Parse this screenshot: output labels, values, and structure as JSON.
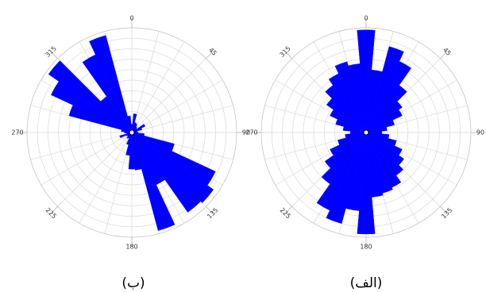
{
  "figure": {
    "panels": [
      {
        "id": "b",
        "caption": "(ب)"
      },
      {
        "id": "alef",
        "caption": "(الف)"
      }
    ]
  },
  "chart_data": [
    {
      "type": "rose",
      "caption": "(ب)",
      "angle_ticks": [
        "0",
        "45",
        "90",
        "135",
        "180",
        "225",
        "270",
        "315"
      ],
      "bin_width_deg": 10,
      "radial_max": 1.0,
      "grid": true,
      "color": "#0000ff",
      "bins": [
        {
          "angle": 0,
          "value": 0.08
        },
        {
          "angle": 10,
          "value": 0.18
        },
        {
          "angle": 20,
          "value": 0.1
        },
        {
          "angle": 30,
          "value": 0.09
        },
        {
          "angle": 40,
          "value": 0.07
        },
        {
          "angle": 50,
          "value": 0.06
        },
        {
          "angle": 60,
          "value": 0.14
        },
        {
          "angle": 70,
          "value": 0.1
        },
        {
          "angle": 80,
          "value": 0.05
        },
        {
          "angle": 90,
          "value": 0.06
        },
        {
          "angle": 100,
          "value": 0.12
        },
        {
          "angle": 110,
          "value": 0.42
        },
        {
          "angle": 120,
          "value": 0.88
        },
        {
          "angle": 130,
          "value": 0.95
        },
        {
          "angle": 140,
          "value": 0.93
        },
        {
          "angle": 150,
          "value": 0.55
        },
        {
          "angle": 160,
          "value": 0.97
        },
        {
          "angle": 170,
          "value": 0.36
        },
        {
          "angle": 180,
          "value": 0.35
        },
        {
          "angle": 190,
          "value": 0.22
        },
        {
          "angle": 200,
          "value": 0.12
        },
        {
          "angle": 210,
          "value": 0.06
        },
        {
          "angle": 220,
          "value": 0.07
        },
        {
          "angle": 230,
          "value": 0.05
        },
        {
          "angle": 240,
          "value": 0.06
        },
        {
          "angle": 250,
          "value": 0.12
        },
        {
          "angle": 260,
          "value": 0.05
        },
        {
          "angle": 270,
          "value": 0.07
        },
        {
          "angle": 280,
          "value": 0.1
        },
        {
          "angle": 290,
          "value": 0.62
        },
        {
          "angle": 300,
          "value": 0.85
        },
        {
          "angle": 310,
          "value": 0.97
        },
        {
          "angle": 320,
          "value": 0.42
        },
        {
          "angle": 330,
          "value": 0.82
        },
        {
          "angle": 340,
          "value": 0.96
        },
        {
          "angle": 350,
          "value": 0.16
        }
      ]
    },
    {
      "type": "rose",
      "caption": "(الف)",
      "angle_ticks": [
        "0",
        "45",
        "90",
        "135",
        "180",
        "225",
        "270",
        "315"
      ],
      "bin_width_deg": 10,
      "radial_max": 1.0,
      "grid": true,
      "color": "#0000ff",
      "bins": [
        {
          "angle": 0,
          "value": 0.98
        },
        {
          "angle": 10,
          "value": 0.6
        },
        {
          "angle": 20,
          "value": 0.85
        },
        {
          "angle": 30,
          "value": 0.75
        },
        {
          "angle": 40,
          "value": 0.55
        },
        {
          "angle": 50,
          "value": 0.42
        },
        {
          "angle": 60,
          "value": 0.38
        },
        {
          "angle": 70,
          "value": 0.28
        },
        {
          "angle": 80,
          "value": 0.2
        },
        {
          "angle": 90,
          "value": 0.15
        },
        {
          "angle": 100,
          "value": 0.22
        },
        {
          "angle": 110,
          "value": 0.3
        },
        {
          "angle": 120,
          "value": 0.38
        },
        {
          "angle": 130,
          "value": 0.44
        },
        {
          "angle": 140,
          "value": 0.5
        },
        {
          "angle": 150,
          "value": 0.58
        },
        {
          "angle": 160,
          "value": 0.6
        },
        {
          "angle": 170,
          "value": 0.62
        },
        {
          "angle": 180,
          "value": 0.97
        },
        {
          "angle": 190,
          "value": 0.75
        },
        {
          "angle": 200,
          "value": 0.9
        },
        {
          "angle": 210,
          "value": 0.82
        },
        {
          "angle": 220,
          "value": 0.6
        },
        {
          "angle": 230,
          "value": 0.48
        },
        {
          "angle": 240,
          "value": 0.38
        },
        {
          "angle": 250,
          "value": 0.28
        },
        {
          "angle": 260,
          "value": 0.2
        },
        {
          "angle": 270,
          "value": 0.15
        },
        {
          "angle": 280,
          "value": 0.22
        },
        {
          "angle": 290,
          "value": 0.3
        },
        {
          "angle": 300,
          "value": 0.38
        },
        {
          "angle": 310,
          "value": 0.46
        },
        {
          "angle": 320,
          "value": 0.55
        },
        {
          "angle": 330,
          "value": 0.62
        },
        {
          "angle": 340,
          "value": 0.7
        },
        {
          "angle": 350,
          "value": 0.66
        }
      ]
    }
  ]
}
